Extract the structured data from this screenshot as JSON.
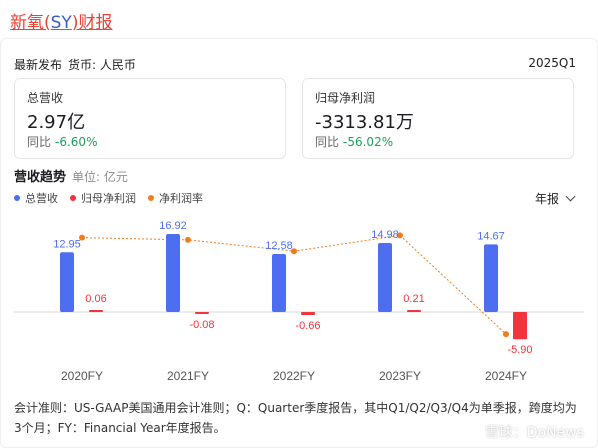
{
  "header": {
    "title_prefix": "新氧(",
    "title_ticker": "SY",
    "title_suffix": ")财报"
  },
  "meta": {
    "latest_label": "最新发布",
    "currency": "货币: 人民币",
    "period": "2025Q1"
  },
  "stats": {
    "revenue": {
      "label": "总营收",
      "value": "2.97亿",
      "change_label": "同比",
      "change": "-6.60%"
    },
    "net_income": {
      "label": "归母净利润",
      "value": "-3313.81万",
      "change_label": "同比",
      "change": "-56.02%"
    }
  },
  "trend": {
    "heading": "营收趋势",
    "unit": "单位: 亿元",
    "legend": [
      "总营收",
      "归母净利润",
      "净利润率"
    ],
    "period_selector": "年报"
  },
  "colors": {
    "revenue": "#4e6ef2",
    "net_income": "#f4333c",
    "margin": "#f27c1c",
    "positive_change": "#1f9e5c",
    "title_red": "#e94335",
    "title_blue": "#3a5bc7"
  },
  "chart_data": {
    "type": "bar",
    "categories": [
      "2020FY",
      "2021FY",
      "2022FY",
      "2023FY",
      "2024FY"
    ],
    "series": [
      {
        "name": "总营收",
        "values": [
          12.95,
          16.92,
          12.58,
          14.98,
          14.67
        ],
        "labels": [
          "12.95",
          "16.92",
          "12.58",
          "14.98",
          "14.67"
        ]
      },
      {
        "name": "归母净利润",
        "values": [
          0.06,
          -0.08,
          -0.66,
          0.21,
          -5.9
        ],
        "labels": [
          "0.06",
          "-0.08",
          "-0.66",
          "0.21",
          "-5.90"
        ]
      },
      {
        "name": "净利润率",
        "type": "line",
        "values": [
          0.46,
          -0.47,
          -5.25,
          1.4,
          -40.22
        ]
      }
    ]
  },
  "footnote": "会计准则：US-GAAP美国通用会计准则；Q：Quarter季度报告，其中Q1/Q2/Q3/Q4为单季报，跨度均为3个月；FY：Financial Year年度报告。",
  "watermark": "雪球：DoNews"
}
